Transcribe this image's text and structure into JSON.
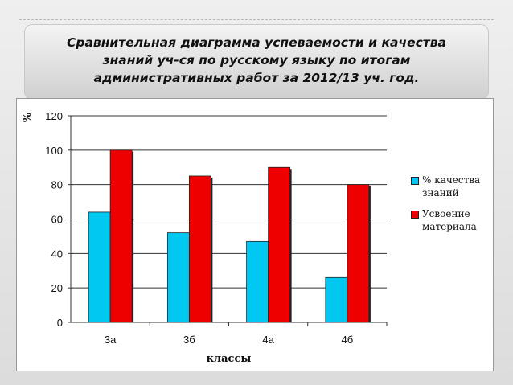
{
  "title": "Сравнительная диаграмма успеваемости и качества\nзнаний уч-ся по русскому языку по итогам\nадминистративных работ за 2012/13 уч. год.",
  "chart_data": {
    "type": "bar",
    "title": "",
    "xlabel": "классы",
    "ylabel": "%",
    "categories": [
      "3а",
      "3б",
      "4а",
      "4б"
    ],
    "series": [
      {
        "name": "% качества знаний",
        "color": "#00c8f0",
        "values": [
          64,
          52,
          47,
          26
        ]
      },
      {
        "name": "Усвоение материала",
        "color": "#ee0000",
        "values": [
          100,
          85,
          90,
          80
        ]
      }
    ],
    "ylim": [
      0,
      120
    ],
    "yticks": [
      "0",
      "20",
      "40",
      "60",
      "80",
      "100",
      "120"
    ],
    "grid": true,
    "legend": "right"
  }
}
